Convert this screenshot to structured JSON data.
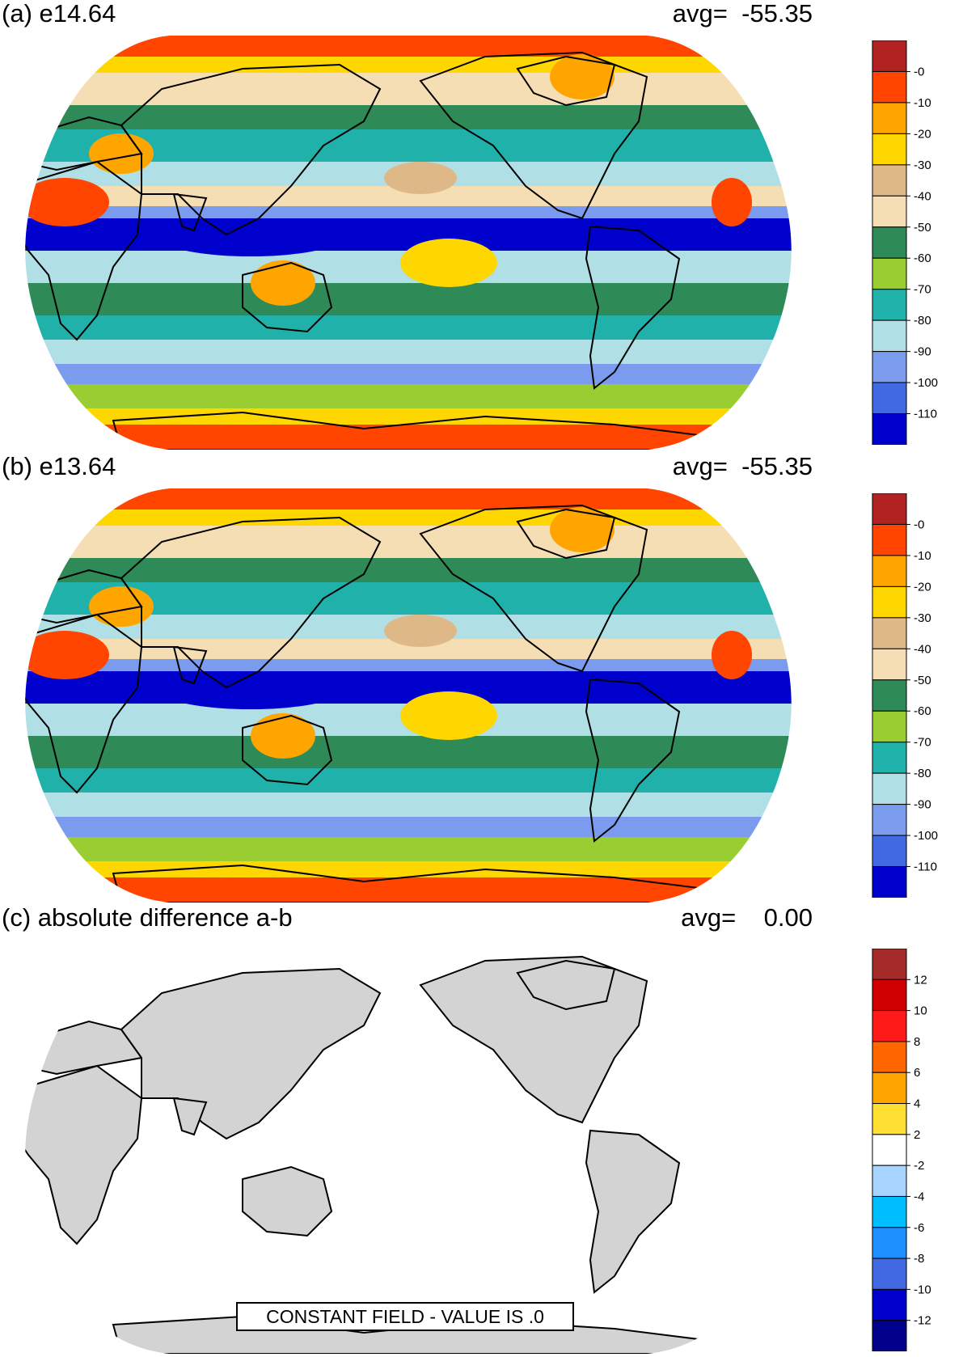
{
  "panels": [
    {
      "id": "a",
      "title": "(a) e14.64",
      "avg": "avg=  -55.35",
      "colorbar": {
        "colors": [
          "#b22222",
          "#ff4500",
          "#ffa500",
          "#ffd700",
          "#deb887",
          "#f5deb3",
          "#2e8b57",
          "#9acd32",
          "#20b2aa",
          "#b0e0e6",
          "#7b9bef",
          "#4169e1",
          "#0000cd"
        ],
        "labels": [
          "-0",
          "-10",
          "-20",
          "-30",
          "-40",
          "-50",
          "-60",
          "-70",
          "-80",
          "-90",
          "-100",
          "-110"
        ]
      }
    },
    {
      "id": "b",
      "title": "(b) e13.64",
      "avg": "avg=  -55.35",
      "colorbar": {
        "colors": [
          "#b22222",
          "#ff4500",
          "#ffa500",
          "#ffd700",
          "#deb887",
          "#f5deb3",
          "#2e8b57",
          "#9acd32",
          "#20b2aa",
          "#b0e0e6",
          "#7b9bef",
          "#4169e1",
          "#0000cd"
        ],
        "labels": [
          "-0",
          "-10",
          "-20",
          "-30",
          "-40",
          "-50",
          "-60",
          "-70",
          "-80",
          "-90",
          "-100",
          "-110"
        ]
      }
    },
    {
      "id": "c",
      "title": "(c) absolute difference a-b",
      "avg": "avg=    0.00",
      "note": "CONSTANT FIELD - VALUE IS .0",
      "colorbar": {
        "colors": [
          "#a52a2a",
          "#d00000",
          "#ff1a1a",
          "#ff6600",
          "#ffa500",
          "#ffe033",
          "#ffffff",
          "#a6d4ff",
          "#00bfff",
          "#1e90ff",
          "#4169e1",
          "#0000cd",
          "#00008b"
        ],
        "labels": [
          "12",
          "10",
          "8",
          "6",
          "4",
          "2",
          "-2",
          "-4",
          "-6",
          "-8",
          "-10",
          "-12"
        ]
      }
    }
  ]
}
